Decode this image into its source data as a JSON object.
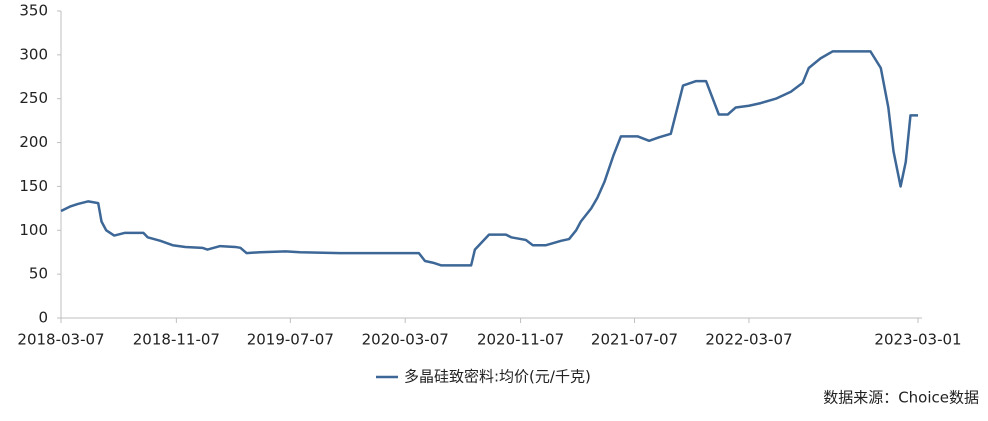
{
  "chart_data": {
    "type": "line",
    "x": [
      "2018-03-07",
      "2018-03-26",
      "2018-04-12",
      "2018-05-04",
      "2018-05-25",
      "2018-06-01",
      "2018-06-11",
      "2018-06-28",
      "2018-07-20",
      "2018-08-29",
      "2018-09-07",
      "2018-10-04",
      "2018-10-30",
      "2018-11-26",
      "2019-01-01",
      "2019-01-12",
      "2019-02-08",
      "2019-03-12",
      "2019-03-23",
      "2019-04-05",
      "2019-05-04",
      "2019-06-27",
      "2019-07-28",
      "2019-10-21",
      "2020-04-05",
      "2020-04-18",
      "2020-05-05",
      "2020-05-22",
      "2020-07-25",
      "2020-08-02",
      "2020-09-01",
      "2020-10-07",
      "2020-10-18",
      "2020-11-18",
      "2020-12-03",
      "2020-12-31",
      "2021-02-01",
      "2021-02-18",
      "2021-03-05",
      "2021-03-15",
      "2021-04-06",
      "2021-04-19",
      "2021-05-04",
      "2021-05-23",
      "2021-06-08",
      "2021-07-14",
      "2021-08-07",
      "2021-08-28",
      "2021-09-22",
      "2021-10-18",
      "2021-11-14",
      "2021-12-06",
      "2022-01-02",
      "2022-01-21",
      "2022-02-07",
      "2022-03-07",
      "2022-04-01",
      "2022-05-03",
      "2022-06-04",
      "2022-06-29",
      "2022-07-12",
      "2022-08-06",
      "2022-09-01",
      "2022-11-20",
      "2022-12-12",
      "2022-12-28",
      "2023-01-08",
      "2023-01-23",
      "2023-02-03",
      "2023-02-13",
      "2023-03-01"
    ],
    "series": [
      {
        "name": "多晶硅致密料:均价(元/千克)",
        "color": "#3d6796",
        "values": [
          122,
          127,
          130,
          133,
          131,
          110,
          100,
          94,
          97,
          97,
          92,
          88,
          83,
          81,
          80,
          78,
          82,
          81,
          80,
          74,
          75,
          76,
          75,
          74,
          74,
          65,
          63,
          60,
          60,
          78,
          95,
          95,
          92,
          89,
          83,
          83,
          88,
          90,
          100,
          110,
          125,
          137,
          155,
          185,
          207,
          207,
          202,
          206,
          210,
          265,
          270,
          270,
          232,
          232,
          240,
          242,
          245,
          250,
          258,
          268,
          285,
          296,
          304,
          304,
          285,
          240,
          190,
          150,
          178,
          231,
          231
        ]
      }
    ],
    "xlim": [
      "2018-03-07",
      "2023-03-01"
    ],
    "xticks": [
      "2018-03-07",
      "2018-11-07",
      "2019-07-07",
      "2020-03-07",
      "2020-11-07",
      "2021-07-07",
      "2022-03-07",
      "2023-03-01"
    ],
    "ylim": [
      0,
      350
    ],
    "yticks": [
      0,
      50,
      100,
      150,
      200,
      250,
      300,
      350
    ],
    "source": "数据来源：Choice数据"
  }
}
